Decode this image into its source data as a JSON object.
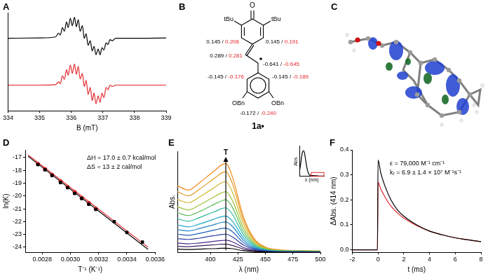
{
  "chart_data": [
    {
      "title": "A",
      "type": "line",
      "x_label": "B (mT)",
      "x": [
        334,
        335,
        335.5,
        335.6,
        335.65,
        335.72,
        335.78,
        335.85,
        335.9,
        335.97,
        336.03,
        336.1,
        336.16,
        336.22,
        336.28,
        336.35,
        336.41,
        336.47,
        336.53,
        336.6,
        336.66,
        336.72,
        336.78,
        336.85,
        336.91,
        336.97,
        337.03,
        337.1,
        337.16,
        337.22,
        337.3,
        337.4,
        338,
        339
      ],
      "series": [
        {
          "color": "#000000",
          "values": [
            0.55,
            0.56,
            0.58,
            0.66,
            0.62,
            0.78,
            0.7,
            0.9,
            0.78,
            0.98,
            0.82,
            1.0,
            0.8,
            0.95,
            0.7,
            0.82,
            0.55,
            0.65,
            0.4,
            0.5,
            0.28,
            0.38,
            0.2,
            0.32,
            0.2,
            0.35,
            0.3,
            0.45,
            0.42,
            0.52,
            0.5,
            0.55,
            0.55,
            0.56
          ]
        },
        {
          "color": "#e3262b",
          "values": [
            -0.45,
            -0.45,
            -0.44,
            -0.38,
            -0.42,
            -0.25,
            -0.33,
            -0.12,
            -0.24,
            -0.02,
            -0.2,
            0.0,
            -0.22,
            -0.05,
            -0.32,
            -0.2,
            -0.48,
            -0.35,
            -0.65,
            -0.5,
            -0.78,
            -0.62,
            -0.85,
            -0.68,
            -0.82,
            -0.62,
            -0.72,
            -0.5,
            -0.55,
            -0.45,
            -0.48,
            -0.45,
            -0.45,
            -0.45
          ]
        }
      ],
      "xlim": [
        334,
        339
      ],
      "xticks": [
        334,
        335,
        336,
        337,
        338,
        339
      ],
      "ylim": [
        -1,
        1.1
      ],
      "tick_labels": "x",
      "grid": false
    },
    {
      "title": "D",
      "type": "scatter",
      "x_label": "T⁻¹ (K⁻¹)",
      "y_label": "ln(K)",
      "series": [
        {
          "type": "line",
          "color": "#000000",
          "line_style": "solid",
          "x": [
            0.0027,
            0.00355
          ],
          "values": [
            -16.9,
            -24.17
          ]
        },
        {
          "type": "line",
          "color": "#e3262b",
          "line_style": "solid",
          "x": [
            0.0027,
            0.00355
          ],
          "values": [
            -16.8,
            -24.0
          ]
        },
        {
          "type": "scatter",
          "marker": "square",
          "color": "#000000",
          "x": [
            0.00277,
            0.00282,
            0.00287,
            0.00293,
            0.00298,
            0.00303,
            0.00308,
            0.00313,
            0.00318,
            0.00331,
            0.0034,
            0.00351
          ],
          "values": [
            -17.55,
            -17.95,
            -18.4,
            -18.95,
            -19.35,
            -19.8,
            -20.2,
            -20.65,
            -21.05,
            -22.0,
            -22.85,
            -23.6
          ]
        },
        {
          "type": "scatter",
          "marker": "circle",
          "color": "#e3262b",
          "x": [
            0.00277,
            0.00282,
            0.00287,
            0.00293,
            0.00298,
            0.00303,
            0.00308,
            0.00313,
            0.00318
          ],
          "values": [
            -17.5,
            -17.9,
            -18.35,
            -18.85,
            -19.3,
            -19.7,
            -20.15,
            -20.55,
            -21.0
          ]
        }
      ],
      "xlim": [
        0.00268,
        0.0036
      ],
      "xticks": [
        0.0028,
        {
          "value": 0.003,
          "label": "0.0030"
        },
        0.0032,
        0.0034,
        0.0036
      ],
      "ylim": [
        -24.4,
        -16.4
      ],
      "yticks": [
        -17,
        -18,
        -19,
        -20,
        -21,
        -22,
        -23,
        -24
      ],
      "grid": false,
      "annotations": [
        "ΔH = 17.0 ± 0.7 kcal/mol",
        "ΔS = 13 ± 2 cal/mol"
      ]
    },
    {
      "title": "E",
      "type": "line",
      "x_label": "λ (nm)",
      "y_label": "Abs.",
      "x": [
        370,
        380,
        390,
        400,
        405,
        410,
        414,
        420,
        430,
        440,
        450,
        460,
        480,
        500
      ],
      "series": [
        {
          "color": "#000000",
          "values": [
            0.008,
            0.007,
            0.008,
            0.009,
            0.009,
            0.01,
            0.01,
            0.009,
            0.004,
            0.002,
            0.001,
            0,
            0,
            0
          ]
        },
        {
          "color": "#3b1f5a",
          "values": [
            0.015,
            0.014,
            0.016,
            0.018,
            0.019,
            0.02,
            0.02,
            0.017,
            0.008,
            0.003,
            0.001,
            0.001,
            0,
            0
          ]
        },
        {
          "color": "#4b2a8a",
          "values": [
            0.023,
            0.021,
            0.023,
            0.026,
            0.028,
            0.029,
            0.03,
            0.026,
            0.012,
            0.005,
            0.002,
            0.001,
            0.001,
            0
          ]
        },
        {
          "color": "#2f3fa0",
          "values": [
            0.034,
            0.032,
            0.035,
            0.04,
            0.042,
            0.044,
            0.045,
            0.038,
            0.018,
            0.007,
            0.003,
            0.001,
            0.001,
            0.001
          ]
        },
        {
          "color": "#1e60b8",
          "values": [
            0.045,
            0.042,
            0.047,
            0.053,
            0.056,
            0.059,
            0.06,
            0.051,
            0.024,
            0.009,
            0.004,
            0.002,
            0.001,
            0.001
          ]
        },
        {
          "color": "#1f86c8",
          "values": [
            0.056,
            0.053,
            0.059,
            0.066,
            0.07,
            0.074,
            0.075,
            0.064,
            0.03,
            0.011,
            0.005,
            0.002,
            0.002,
            0.001
          ]
        },
        {
          "color": "#20a8c8",
          "values": [
            0.068,
            0.063,
            0.07,
            0.079,
            0.084,
            0.088,
            0.09,
            0.077,
            0.036,
            0.014,
            0.005,
            0.003,
            0.002,
            0.001
          ]
        },
        {
          "color": "#2bb89a",
          "values": [
            0.083,
            0.077,
            0.086,
            0.097,
            0.102,
            0.108,
            0.11,
            0.094,
            0.044,
            0.017,
            0.007,
            0.003,
            0.002,
            0.002
          ]
        },
        {
          "color": "#5cbf5a",
          "values": [
            0.098,
            0.091,
            0.101,
            0.114,
            0.121,
            0.127,
            0.13,
            0.111,
            0.052,
            0.02,
            0.008,
            0.004,
            0.003,
            0.002
          ]
        },
        {
          "color": "#9ec13a",
          "values": [
            0.113,
            0.105,
            0.117,
            0.132,
            0.14,
            0.147,
            0.15,
            0.128,
            0.06,
            0.023,
            0.009,
            0.005,
            0.003,
            0.002
          ]
        },
        {
          "color": "#cfb62a",
          "values": [
            0.131,
            0.123,
            0.137,
            0.154,
            0.163,
            0.172,
            0.175,
            0.149,
            0.07,
            0.026,
            0.011,
            0.005,
            0.004,
            0.003
          ]
        },
        {
          "color": "#e39a20",
          "values": [
            0.15,
            0.14,
            0.156,
            0.176,
            0.186,
            0.196,
            0.2,
            0.17,
            0.08,
            0.03,
            0.012,
            0.006,
            0.004,
            0.003
          ]
        },
        {
          "color": "#f08a1a",
          "values": [
            0.165,
            0.154,
            0.172,
            0.194,
            0.205,
            0.216,
            0.22,
            0.187,
            0.088,
            0.033,
            0.013,
            0.007,
            0.004,
            0.003
          ]
        }
      ],
      "xlim": [
        370,
        500
      ],
      "xticks": [
        400,
        425,
        450,
        475,
        500
      ],
      "ylim": [
        0,
        0.25
      ],
      "tick_labels": "x",
      "grid": false,
      "annotations": [
        "T"
      ]
    },
    {
      "type": "line",
      "x_label": "λ (nm)",
      "y_label": "Abs.",
      "x": [
        250,
        260,
        270,
        280,
        290,
        300,
        310,
        320,
        330,
        340,
        350,
        360,
        380,
        400,
        450,
        500
      ],
      "series": [
        {
          "color": "#000000",
          "values": [
            0.5,
            1.0,
            1.6,
            2.0,
            2.1,
            1.9,
            1.4,
            0.9,
            0.5,
            0.25,
            0.12,
            0.08,
            0.06,
            0.05,
            0.02,
            0.01
          ]
        }
      ],
      "xlim": [
        250,
        500
      ],
      "ylim": [
        0,
        2.5
      ],
      "tick_labels": false,
      "grid": false
    },
    {
      "title": "F",
      "type": "line",
      "x_label": "t (ms)",
      "y_label": "ΔAbs. (414 nm)",
      "x": [
        -2,
        -0.05,
        0,
        0.2,
        0.5,
        1,
        1.5,
        2,
        3,
        4,
        5,
        6,
        7,
        8
      ],
      "series": [
        {
          "color": "#000000",
          "values": [
            0,
            0,
            0.36,
            0.31,
            0.26,
            0.2,
            0.16,
            0.135,
            0.1,
            0.075,
            0.06,
            0.048,
            0.04,
            0.033
          ]
        },
        {
          "color": "#e3262b",
          "values": [
            0,
            0,
            0.27,
            0.245,
            0.215,
            0.175,
            0.148,
            0.127,
            0.097,
            0.075,
            0.06,
            0.048,
            0.04,
            0.033
          ]
        }
      ],
      "xlim": [
        -2,
        8
      ],
      "xticks": [
        -2,
        0,
        2,
        4,
        6,
        8
      ],
      "ylim": [
        -0.01,
        0.4
      ],
      "yticks": [
        {
          "value": 0,
          "label": "0.0"
        },
        0.1,
        0.2,
        0.3,
        0.4
      ],
      "grid": false,
      "annotations": [
        "ε = 79,000 M⁻¹ cm⁻¹",
        "kᵣ = 6.9 ± 1.4 × 10⁷ M⁻¹s⁻¹"
      ]
    }
  ],
  "structure": {
    "title": "B",
    "name": "1a•",
    "carbonyl": "O",
    "substituents": [
      "tBu",
      "tBu",
      "OBn",
      "OBn"
    ],
    "separator": " / ",
    "colors": [
      "#000000",
      "#e3262b"
    ],
    "spin_densities": [
      [
        "0.145",
        "0.208"
      ],
      [
        "0.145",
        "0.191"
      ],
      [
        "0.289",
        "0.281"
      ],
      [
        "-0.641",
        "-0.645"
      ],
      [
        "-0.145",
        "-0.176"
      ],
      [
        "-0.145",
        "-0.189"
      ],
      [
        "-0.172",
        "-0.240"
      ]
    ]
  },
  "image": {
    "title": "C"
  }
}
